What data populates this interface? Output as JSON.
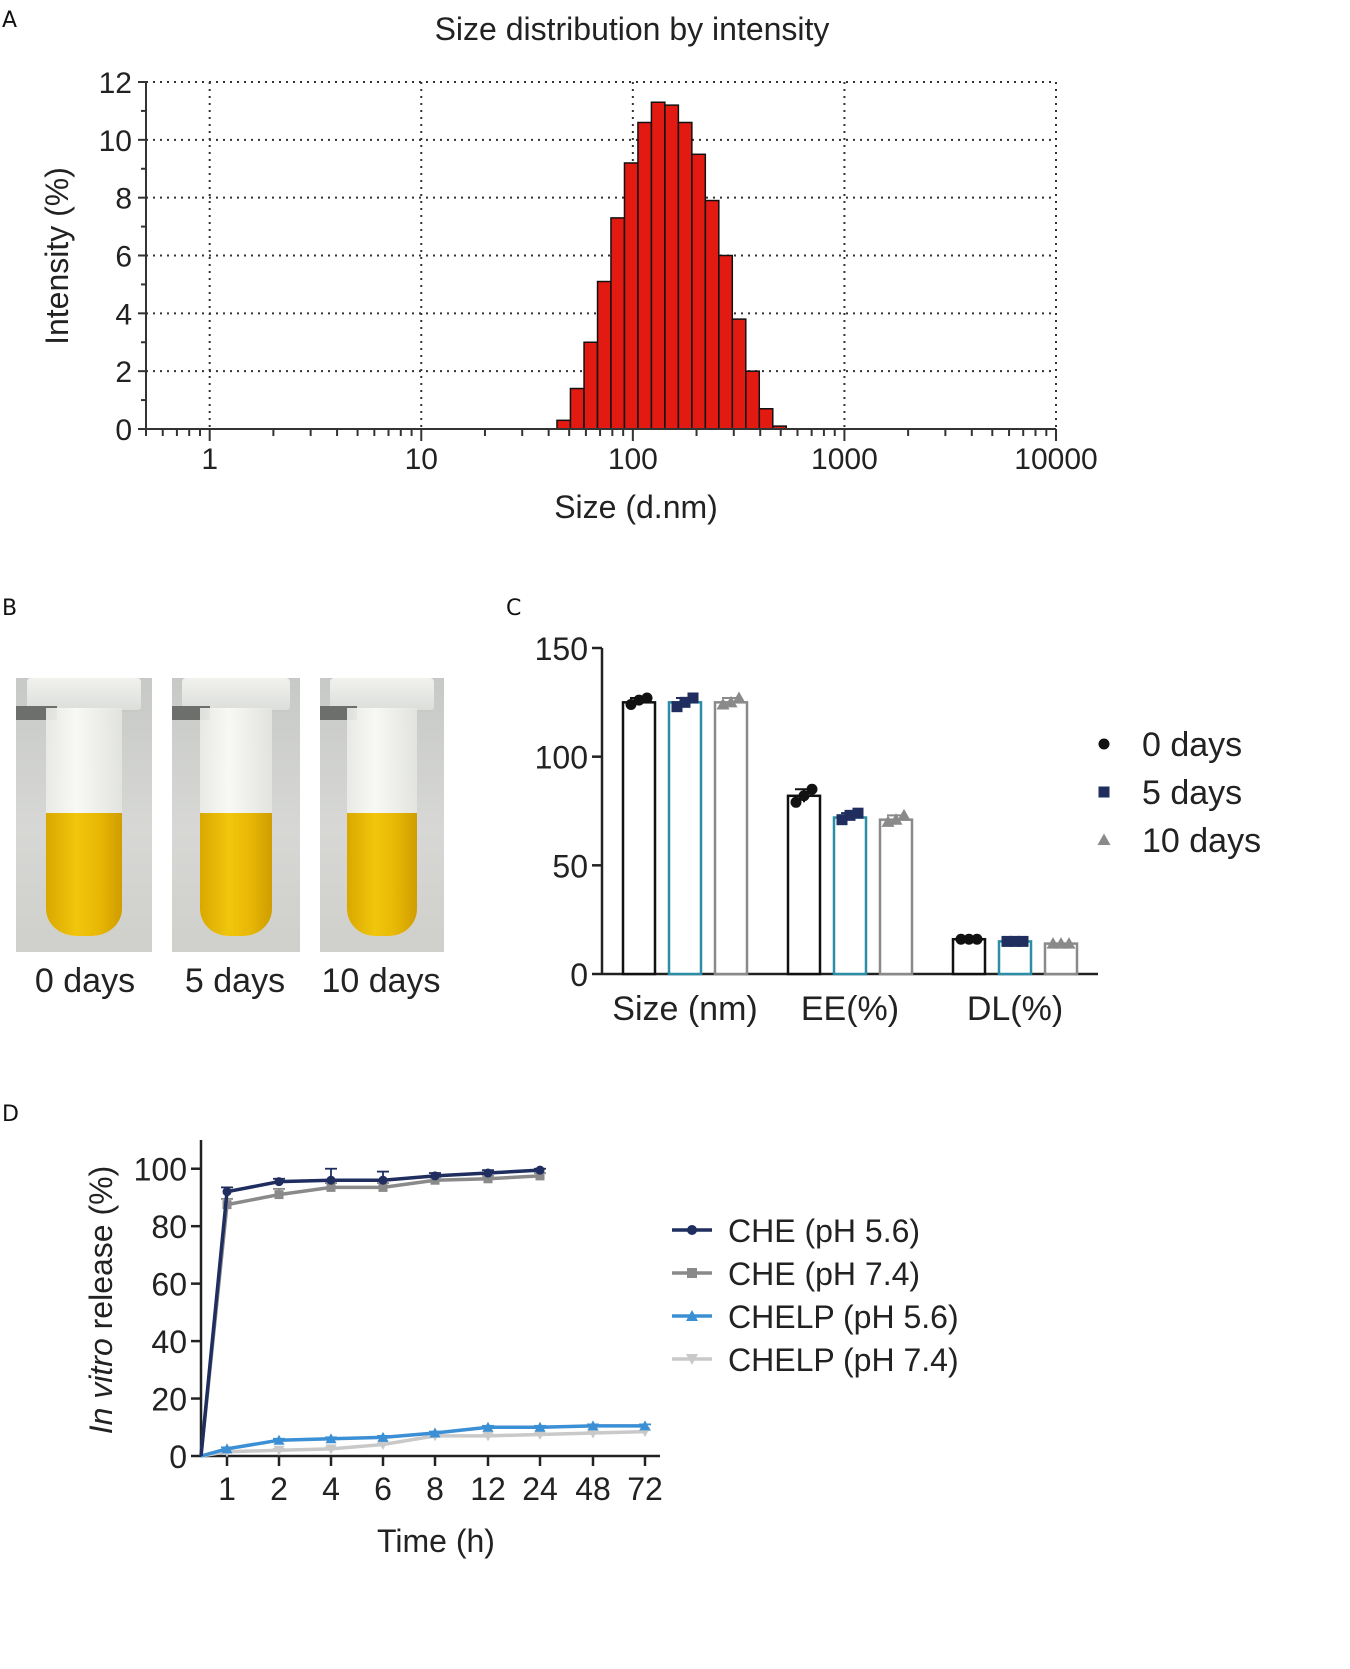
{
  "panels": {
    "a": "A",
    "b": "B",
    "c": "C",
    "d": "D"
  },
  "colors": {
    "bar_red": "#e31a12",
    "black": "#111111",
    "navy": "#1f2d5f",
    "teal": "#2a8fa6",
    "gray": "#8a8a8a",
    "light_gray": "#c9c9c9",
    "blue": "#3b8fd4"
  },
  "photos": [
    {
      "label": "0 days"
    },
    {
      "label": "5 days"
    },
    {
      "label": "10 days"
    }
  ],
  "chart_data": [
    {
      "id": "A",
      "type": "bar",
      "title": "Size distribution by intensity",
      "xlabel": "Size (d.nm)",
      "ylabel": "Intensity (%)",
      "xscale": "log",
      "xlim": [
        0.5,
        10000
      ],
      "ylim": [
        0,
        12
      ],
      "xticks": [
        1,
        10,
        100,
        1000,
        10000
      ],
      "xtick_labels": [
        "1",
        "10",
        "100",
        "1000",
        "10000"
      ],
      "yticks": [
        0,
        2,
        4,
        6,
        8,
        10,
        12
      ],
      "grid": true,
      "bins_x": [
        43.8,
        50.7,
        58.8,
        68.1,
        78.8,
        91.3,
        105.7,
        122.4,
        141.8,
        164.2,
        190.1,
        220.2,
        255.0,
        295.3,
        342.0,
        396.1,
        458.7
      ],
      "values": [
        0.3,
        1.4,
        3.0,
        5.1,
        7.3,
        9.2,
        10.6,
        11.3,
        11.2,
        10.6,
        9.5,
        7.9,
        6.0,
        3.8,
        2.0,
        0.7,
        0.1
      ]
    },
    {
      "id": "C",
      "type": "bar",
      "categories": [
        "Size (nm)",
        "EE(%)",
        "DL(%)"
      ],
      "ylim": [
        0,
        150
      ],
      "yticks": [
        0,
        50,
        100,
        150
      ],
      "series": [
        {
          "name": "0 days",
          "values": [
            125,
            82,
            16
          ],
          "points": [
            [
              124,
              126,
              127
            ],
            [
              79,
              82,
              85
            ],
            [
              16,
              16,
              16
            ]
          ],
          "marker": "circle"
        },
        {
          "name": "5 days",
          "values": [
            125,
            72,
            15
          ],
          "points": [
            [
              123,
              125,
              127
            ],
            [
              71,
              73,
              74
            ],
            [
              15,
              15,
              15
            ]
          ],
          "marker": "square"
        },
        {
          "name": "10 days",
          "values": [
            125,
            71,
            14
          ],
          "points": [
            [
              124,
              125,
              127
            ],
            [
              70,
              71,
              73
            ],
            [
              14,
              14,
              14
            ]
          ],
          "marker": "triangle"
        }
      ]
    },
    {
      "id": "D",
      "type": "line",
      "xlabel_main": "Time (h)",
      "ylabel_italic": "In vitro",
      "ylabel_rest": " release (%)",
      "x": [
        "0",
        "1",
        "2",
        "4",
        "6",
        "8",
        "12",
        "24",
        "48",
        "72"
      ],
      "xtick_labels": [
        "1",
        "2",
        "4",
        "6",
        "8",
        "12",
        "24",
        "48",
        "72"
      ],
      "ylim": [
        0,
        110
      ],
      "yticks": [
        0,
        20,
        40,
        60,
        80,
        100
      ],
      "series": [
        {
          "name": "CHE (pH 5.6)",
          "values": [
            0,
            92,
            95.5,
            96,
            96,
            97.5,
            98.5,
            99.5,
            null,
            null
          ],
          "errors": [
            0,
            1.5,
            1,
            4,
            3,
            1,
            1,
            0.5,
            0,
            0
          ],
          "marker": "circle"
        },
        {
          "name": "CHE (pH 7.4)",
          "values": [
            0,
            87.5,
            91,
            93.5,
            93.5,
            96,
            96.5,
            97.5,
            null,
            null
          ],
          "errors": [
            0,
            2,
            2,
            1.5,
            1.5,
            1,
            1,
            1,
            0,
            0
          ],
          "marker": "square"
        },
        {
          "name": "CHELP (pH 5.6)",
          "values": [
            0,
            2.5,
            5.5,
            6,
            6.5,
            8,
            10,
            10,
            10.5,
            10.5
          ],
          "errors": [
            0,
            0.5,
            0.5,
            0.5,
            0.5,
            0.5,
            0.5,
            0.5,
            0.5,
            0.5
          ],
          "marker": "triangle"
        },
        {
          "name": "CHELP (pH 7.4)",
          "values": [
            0,
            1.5,
            2,
            2.5,
            4,
            7,
            7,
            7.5,
            8,
            8.5
          ],
          "errors": [
            0,
            0.5,
            0.5,
            0.5,
            0.5,
            0.5,
            0.5,
            0.5,
            0.5,
            0.5
          ],
          "marker": "invtriangle"
        }
      ]
    }
  ]
}
